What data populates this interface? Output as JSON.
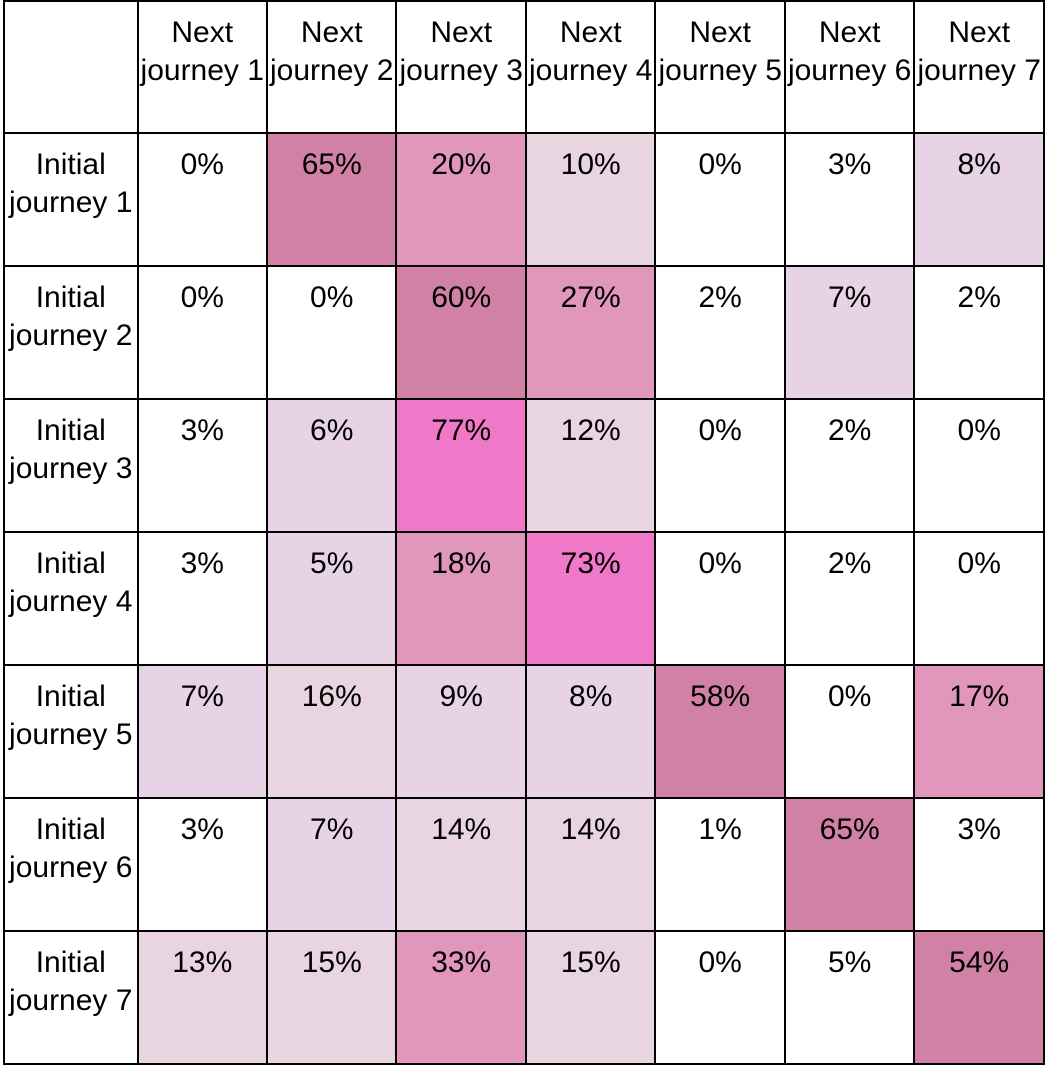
{
  "chart_data": {
    "type": "heatmap",
    "columns": [
      "Next journey 1",
      "Next journey 2",
      "Next journey 3",
      "Next journey 4",
      "Next journey 5",
      "Next journey 6",
      "Next journey 7"
    ],
    "rows": [
      "Initial journey 1",
      "Initial journey 2",
      "Initial journey 3",
      "Initial journey 4",
      "Initial journey 5",
      "Initial journey 6",
      "Initial journey 7"
    ],
    "values": [
      [
        "0%",
        "65%",
        "20%",
        "10%",
        "0%",
        "3%",
        "8%"
      ],
      [
        "0%",
        "0%",
        "60%",
        "27%",
        "2%",
        "7%",
        "2%"
      ],
      [
        "3%",
        "6%",
        "77%",
        "12%",
        "0%",
        "2%",
        "0%"
      ],
      [
        "3%",
        "5%",
        "18%",
        "73%",
        "0%",
        "2%",
        "0%"
      ],
      [
        "7%",
        "16%",
        "9%",
        "8%",
        "58%",
        "0%",
        "17%"
      ],
      [
        "3%",
        "7%",
        "14%",
        "14%",
        "1%",
        "65%",
        "3%"
      ],
      [
        "13%",
        "15%",
        "33%",
        "15%",
        "0%",
        "5%",
        "54%"
      ]
    ],
    "cell_colors": [
      [
        "#ffffff",
        "#d181a6",
        "#e197bb",
        "#e8d5e0",
        "#ffffff",
        "#ffffff",
        "#e8d3e6"
      ],
      [
        "#ffffff",
        "#ffffff",
        "#d181a6",
        "#e197bb",
        "#ffffff",
        "#e8d3e6",
        "#ffffff"
      ],
      [
        "#ffffff",
        "#e8d3e6",
        "#f078c8",
        "#e8d5e0",
        "#ffffff",
        "#ffffff",
        "#ffffff"
      ],
      [
        "#ffffff",
        "#e8d3e6",
        "#e197bb",
        "#f078c8",
        "#ffffff",
        "#ffffff",
        "#ffffff"
      ],
      [
        "#e8d3e6",
        "#e8d5e0",
        "#e8d3e6",
        "#e8d3e6",
        "#d181a6",
        "#ffffff",
        "#e197bb"
      ],
      [
        "#ffffff",
        "#e8d3e6",
        "#e8d5e0",
        "#e8d5e0",
        "#ffffff",
        "#d181a6",
        "#ffffff"
      ],
      [
        "#e8d5e0",
        "#e8d5e0",
        "#e197bb",
        "#e8d5e0",
        "#ffffff",
        "#ffffff",
        "#d181a6"
      ]
    ]
  }
}
